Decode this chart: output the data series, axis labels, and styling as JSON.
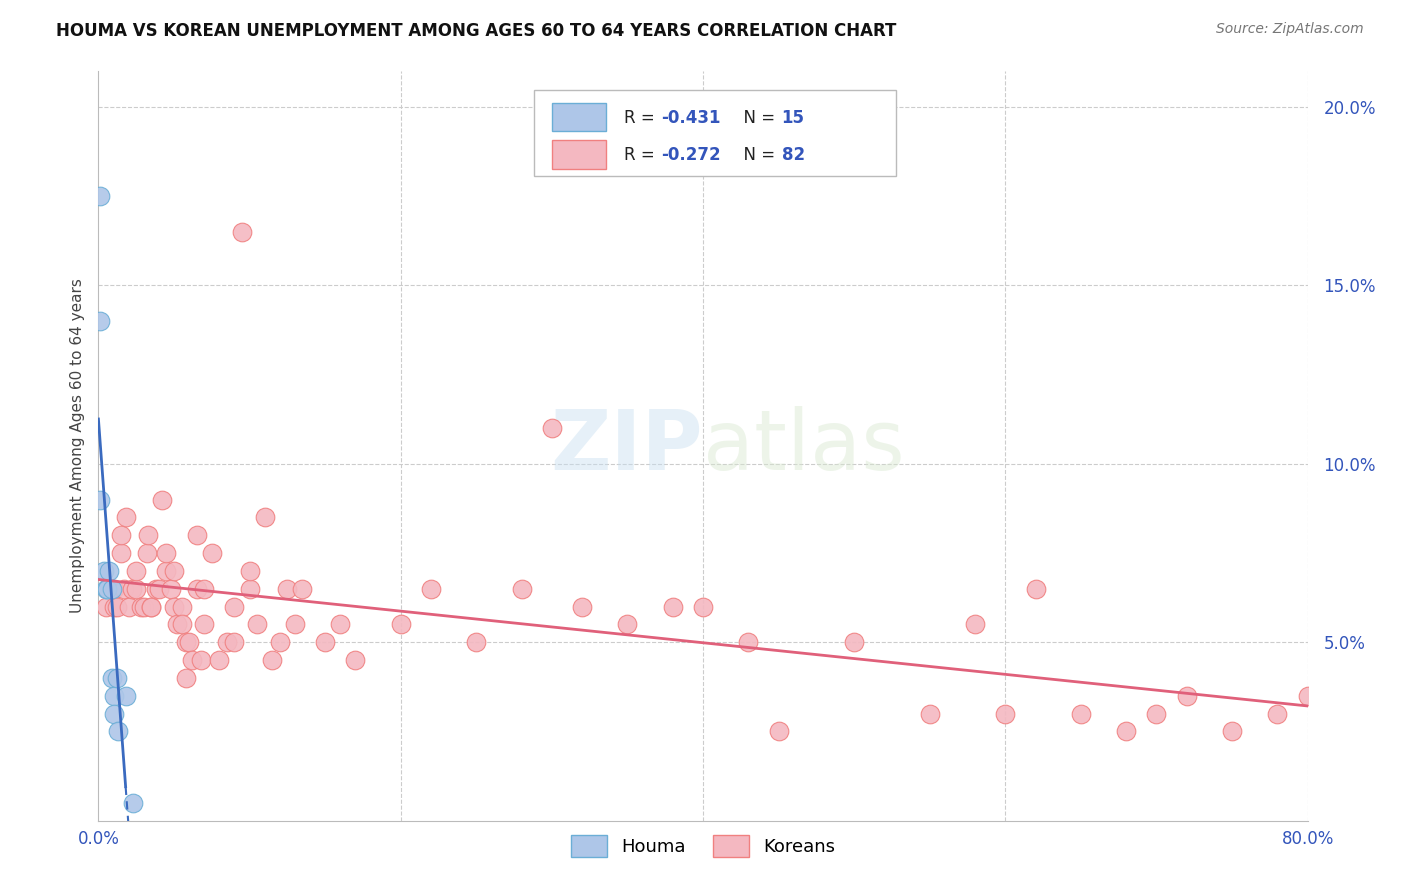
{
  "title": "HOUMA VS KOREAN UNEMPLOYMENT AMONG AGES 60 TO 64 YEARS CORRELATION CHART",
  "source": "Source: ZipAtlas.com",
  "ylabel": "Unemployment Among Ages 60 to 64 years",
  "xlim": [
    0.0,
    0.8
  ],
  "ylim": [
    0.0,
    0.21
  ],
  "yticks": [
    0.05,
    0.1,
    0.15,
    0.2
  ],
  "ytick_labels": [
    "5.0%",
    "10.0%",
    "15.0%",
    "20.0%"
  ],
  "houma_color": "#aec6e8",
  "korean_color": "#f4b8c1",
  "houma_edge_color": "#6baed6",
  "korean_edge_color": "#f08080",
  "trend_houma_color": "#3a6abf",
  "trend_korean_color": "#e0607a",
  "background_color": "#ffffff",
  "grid_color": "#cccccc",
  "watermark_color": "#d0e4f0",
  "houma_x": [
    0.001,
    0.001,
    0.001,
    0.004,
    0.005,
    0.006,
    0.007,
    0.009,
    0.009,
    0.01,
    0.01,
    0.012,
    0.013,
    0.018,
    0.023
  ],
  "houma_y": [
    0.175,
    0.14,
    0.09,
    0.07,
    0.065,
    0.065,
    0.07,
    0.065,
    0.04,
    0.035,
    0.03,
    0.04,
    0.025,
    0.035,
    0.005
  ],
  "korean_x": [
    0.005,
    0.008,
    0.01,
    0.01,
    0.012,
    0.015,
    0.015,
    0.017,
    0.018,
    0.02,
    0.022,
    0.025,
    0.025,
    0.028,
    0.03,
    0.032,
    0.033,
    0.035,
    0.035,
    0.038,
    0.04,
    0.042,
    0.045,
    0.045,
    0.048,
    0.05,
    0.05,
    0.052,
    0.055,
    0.055,
    0.058,
    0.058,
    0.06,
    0.062,
    0.065,
    0.065,
    0.068,
    0.07,
    0.07,
    0.075,
    0.08,
    0.085,
    0.09,
    0.09,
    0.095,
    0.1,
    0.1,
    0.105,
    0.11,
    0.115,
    0.12,
    0.125,
    0.13,
    0.135,
    0.15,
    0.16,
    0.17,
    0.2,
    0.22,
    0.25,
    0.28,
    0.3,
    0.32,
    0.35,
    0.38,
    0.4,
    0.43,
    0.45,
    0.5,
    0.55,
    0.58,
    0.6,
    0.62,
    0.65,
    0.68,
    0.7,
    0.72,
    0.75,
    0.78,
    0.8
  ],
  "korean_y": [
    0.06,
    0.065,
    0.06,
    0.065,
    0.06,
    0.075,
    0.08,
    0.065,
    0.085,
    0.06,
    0.065,
    0.065,
    0.07,
    0.06,
    0.06,
    0.075,
    0.08,
    0.06,
    0.06,
    0.065,
    0.065,
    0.09,
    0.07,
    0.075,
    0.065,
    0.07,
    0.06,
    0.055,
    0.06,
    0.055,
    0.05,
    0.04,
    0.05,
    0.045,
    0.065,
    0.08,
    0.045,
    0.055,
    0.065,
    0.075,
    0.045,
    0.05,
    0.06,
    0.05,
    0.165,
    0.065,
    0.07,
    0.055,
    0.085,
    0.045,
    0.05,
    0.065,
    0.055,
    0.065,
    0.05,
    0.055,
    0.045,
    0.055,
    0.065,
    0.05,
    0.065,
    0.11,
    0.06,
    0.055,
    0.06,
    0.06,
    0.05,
    0.025,
    0.05,
    0.03,
    0.055,
    0.03,
    0.065,
    0.03,
    0.025,
    0.03,
    0.035,
    0.025,
    0.03,
    0.035
  ]
}
